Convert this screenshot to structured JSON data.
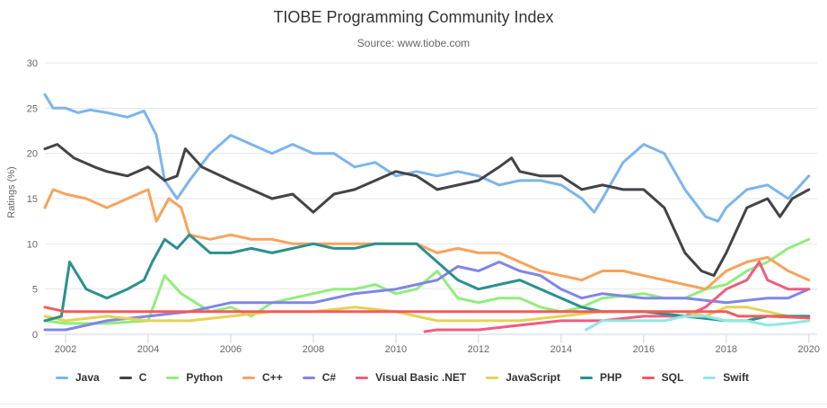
{
  "chart_data": {
    "type": "line",
    "title": "TIOBE Programming Community Index",
    "subtitle": "Source: www.tiobe.com",
    "ylabel": "Ratings (%)",
    "xlabel": "",
    "xlim": [
      2001.5,
      2020.2
    ],
    "ylim": [
      0,
      30
    ],
    "y_ticks": [
      0,
      5,
      10,
      15,
      20,
      25,
      30
    ],
    "y_tick_labels": [
      "0",
      "5",
      "10",
      "15",
      "20",
      "25",
      "30"
    ],
    "x_ticks": [
      2002,
      2004,
      2006,
      2008,
      2010,
      2012,
      2014,
      2016,
      2018,
      2020
    ],
    "x_tick_labels": [
      "2002",
      "2004",
      "2006",
      "2008",
      "2010",
      "2012",
      "2014",
      "2016",
      "2018",
      "2020"
    ],
    "grid": true,
    "legend_position": "bottom",
    "series": [
      {
        "name": "Java",
        "color": "#7cb5ec",
        "points": [
          [
            2001.5,
            26.5
          ],
          [
            2001.7,
            25
          ],
          [
            2002,
            25
          ],
          [
            2002.3,
            24.5
          ],
          [
            2002.6,
            24.8
          ],
          [
            2003,
            24.5
          ],
          [
            2003.5,
            24
          ],
          [
            2003.9,
            24.7
          ],
          [
            2004.2,
            22
          ],
          [
            2004.4,
            17
          ],
          [
            2004.7,
            15
          ],
          [
            2005,
            17
          ],
          [
            2005.5,
            20
          ],
          [
            2006,
            22
          ],
          [
            2006.5,
            21
          ],
          [
            2007,
            20
          ],
          [
            2007.5,
            21
          ],
          [
            2008,
            20
          ],
          [
            2008.5,
            20
          ],
          [
            2009,
            18.5
          ],
          [
            2009.5,
            19
          ],
          [
            2010,
            17.5
          ],
          [
            2010.5,
            18
          ],
          [
            2011,
            17.5
          ],
          [
            2011.5,
            18
          ],
          [
            2012,
            17.5
          ],
          [
            2012.5,
            16.5
          ],
          [
            2013,
            17
          ],
          [
            2013.5,
            17
          ],
          [
            2014,
            16.5
          ],
          [
            2014.5,
            15
          ],
          [
            2014.8,
            13.5
          ],
          [
            2015,
            15
          ],
          [
            2015.5,
            19
          ],
          [
            2016,
            21
          ],
          [
            2016.5,
            20
          ],
          [
            2017,
            16
          ],
          [
            2017.5,
            13
          ],
          [
            2017.8,
            12.5
          ],
          [
            2018,
            14
          ],
          [
            2018.5,
            16
          ],
          [
            2019,
            16.5
          ],
          [
            2019.5,
            15
          ],
          [
            2020,
            17.5
          ]
        ]
      },
      {
        "name": "C",
        "color": "#434348",
        "points": [
          [
            2001.5,
            20.5
          ],
          [
            2001.8,
            21
          ],
          [
            2002.2,
            19.5
          ],
          [
            2002.7,
            18.5
          ],
          [
            2003,
            18
          ],
          [
            2003.5,
            17.5
          ],
          [
            2004,
            18.5
          ],
          [
            2004.4,
            17
          ],
          [
            2004.7,
            17.5
          ],
          [
            2004.9,
            20.5
          ],
          [
            2005.3,
            18.5
          ],
          [
            2006,
            17
          ],
          [
            2006.5,
            16
          ],
          [
            2007,
            15
          ],
          [
            2007.5,
            15.5
          ],
          [
            2008,
            13.5
          ],
          [
            2008.5,
            15.5
          ],
          [
            2009,
            16
          ],
          [
            2009.5,
            17
          ],
          [
            2010,
            18
          ],
          [
            2010.5,
            17.5
          ],
          [
            2011,
            16
          ],
          [
            2011.5,
            16.5
          ],
          [
            2012,
            17
          ],
          [
            2012.5,
            18.5
          ],
          [
            2012.8,
            19.5
          ],
          [
            2013,
            18
          ],
          [
            2013.5,
            17.5
          ],
          [
            2014,
            17.5
          ],
          [
            2014.5,
            16
          ],
          [
            2015,
            16.5
          ],
          [
            2015.5,
            16
          ],
          [
            2016,
            16
          ],
          [
            2016.5,
            14
          ],
          [
            2017,
            9
          ],
          [
            2017.4,
            7
          ],
          [
            2017.7,
            6.5
          ],
          [
            2018,
            9
          ],
          [
            2018.5,
            14
          ],
          [
            2019,
            15
          ],
          [
            2019.3,
            13
          ],
          [
            2019.6,
            15
          ],
          [
            2020,
            16
          ]
        ]
      },
      {
        "name": "Python",
        "color": "#90ed7d",
        "points": [
          [
            2001.5,
            1.5
          ],
          [
            2002,
            1.2
          ],
          [
            2003,
            1.2
          ],
          [
            2004,
            1.5
          ],
          [
            2004.4,
            6.5
          ],
          [
            2004.8,
            4.5
          ],
          [
            2005.5,
            2.5
          ],
          [
            2006,
            3
          ],
          [
            2006.5,
            2
          ],
          [
            2007,
            3.5
          ],
          [
            2008,
            4.5
          ],
          [
            2008.5,
            5
          ],
          [
            2009,
            5
          ],
          [
            2009.5,
            5.5
          ],
          [
            2010,
            4.5
          ],
          [
            2010.5,
            5
          ],
          [
            2011,
            7
          ],
          [
            2011.5,
            4
          ],
          [
            2012,
            3.5
          ],
          [
            2012.5,
            4
          ],
          [
            2013,
            4
          ],
          [
            2013.5,
            3
          ],
          [
            2014,
            2.5
          ],
          [
            2014.5,
            3
          ],
          [
            2015,
            4
          ],
          [
            2016,
            4.5
          ],
          [
            2016.5,
            4
          ],
          [
            2017,
            4
          ],
          [
            2017.5,
            5
          ],
          [
            2018,
            5.5
          ],
          [
            2018.5,
            7
          ],
          [
            2019,
            8
          ],
          [
            2019.5,
            9.5
          ],
          [
            2020,
            10.5
          ]
        ]
      },
      {
        "name": "C++",
        "color": "#f7a35c",
        "points": [
          [
            2001.5,
            14
          ],
          [
            2001.7,
            16
          ],
          [
            2002,
            15.5
          ],
          [
            2002.5,
            15
          ],
          [
            2003,
            14
          ],
          [
            2003.5,
            15
          ],
          [
            2004,
            16
          ],
          [
            2004.2,
            12.5
          ],
          [
            2004.5,
            15
          ],
          [
            2004.8,
            14
          ],
          [
            2005,
            11
          ],
          [
            2005.5,
            10.5
          ],
          [
            2006,
            11
          ],
          [
            2006.5,
            10.5
          ],
          [
            2007,
            10.5
          ],
          [
            2007.5,
            10
          ],
          [
            2008,
            10
          ],
          [
            2008.5,
            10
          ],
          [
            2009,
            10
          ],
          [
            2009.5,
            10
          ],
          [
            2010,
            10
          ],
          [
            2010.5,
            10
          ],
          [
            2011,
            9
          ],
          [
            2011.5,
            9.5
          ],
          [
            2012,
            9
          ],
          [
            2012.5,
            9
          ],
          [
            2013,
            8
          ],
          [
            2013.5,
            7
          ],
          [
            2014,
            6.5
          ],
          [
            2014.5,
            6
          ],
          [
            2015,
            7
          ],
          [
            2015.5,
            7
          ],
          [
            2016,
            6.5
          ],
          [
            2016.5,
            6
          ],
          [
            2017,
            5.5
          ],
          [
            2017.5,
            5
          ],
          [
            2018,
            7
          ],
          [
            2018.5,
            8
          ],
          [
            2019,
            8.5
          ],
          [
            2019.5,
            7
          ],
          [
            2020,
            6
          ]
        ]
      },
      {
        "name": "C#",
        "color": "#8085e9",
        "points": [
          [
            2001.5,
            0.5
          ],
          [
            2002,
            0.5
          ],
          [
            2003,
            1.5
          ],
          [
            2004,
            2
          ],
          [
            2005,
            2.5
          ],
          [
            2006,
            3.5
          ],
          [
            2007,
            3.5
          ],
          [
            2008,
            3.5
          ],
          [
            2009,
            4.5
          ],
          [
            2010,
            5
          ],
          [
            2011,
            6
          ],
          [
            2011.5,
            7.5
          ],
          [
            2012,
            7
          ],
          [
            2012.5,
            8
          ],
          [
            2013,
            7
          ],
          [
            2013.5,
            6.5
          ],
          [
            2014,
            5
          ],
          [
            2014.5,
            4
          ],
          [
            2015,
            4.5
          ],
          [
            2016,
            4
          ],
          [
            2017,
            4
          ],
          [
            2018,
            3.5
          ],
          [
            2019,
            4
          ],
          [
            2019.5,
            4
          ],
          [
            2020,
            5
          ]
        ]
      },
      {
        "name": "Visual Basic .NET",
        "color": "#f15c80",
        "points": [
          [
            2010.7,
            0.3
          ],
          [
            2011,
            0.5
          ],
          [
            2012,
            0.5
          ],
          [
            2013,
            1
          ],
          [
            2014,
            1.5
          ],
          [
            2015,
            1.5
          ],
          [
            2016,
            2
          ],
          [
            2017,
            2
          ],
          [
            2017.5,
            3
          ],
          [
            2018,
            5
          ],
          [
            2018.5,
            6
          ],
          [
            2018.8,
            8
          ],
          [
            2019,
            6
          ],
          [
            2019.5,
            5
          ],
          [
            2020,
            5
          ]
        ]
      },
      {
        "name": "JavaScript",
        "color": "#e4d354",
        "points": [
          [
            2001.5,
            2
          ],
          [
            2002,
            1.5
          ],
          [
            2003,
            2
          ],
          [
            2004,
            1.5
          ],
          [
            2005,
            1.5
          ],
          [
            2006,
            2
          ],
          [
            2007,
            2.5
          ],
          [
            2008,
            2.5
          ],
          [
            2009,
            3
          ],
          [
            2010,
            2.5
          ],
          [
            2011,
            1.5
          ],
          [
            2012,
            1.5
          ],
          [
            2013,
            1.5
          ],
          [
            2014,
            2
          ],
          [
            2015,
            2.5
          ],
          [
            2016,
            2.5
          ],
          [
            2017,
            2.5
          ],
          [
            2017.5,
            2
          ],
          [
            2018,
            3
          ],
          [
            2018.5,
            3
          ],
          [
            2019,
            2.5
          ],
          [
            2019.5,
            2
          ],
          [
            2020,
            2
          ]
        ]
      },
      {
        "name": "PHP",
        "color": "#2b908f",
        "points": [
          [
            2001.5,
            1.5
          ],
          [
            2001.9,
            2
          ],
          [
            2002.1,
            8
          ],
          [
            2002.5,
            5
          ],
          [
            2003,
            4
          ],
          [
            2003.5,
            5
          ],
          [
            2003.9,
            6
          ],
          [
            2004.1,
            8
          ],
          [
            2004.4,
            10.5
          ],
          [
            2004.7,
            9.5
          ],
          [
            2005,
            11
          ],
          [
            2005.5,
            9
          ],
          [
            2006,
            9
          ],
          [
            2006.5,
            9.5
          ],
          [
            2007,
            9
          ],
          [
            2007.5,
            9.5
          ],
          [
            2008,
            10
          ],
          [
            2008.5,
            9.5
          ],
          [
            2009,
            9.5
          ],
          [
            2009.5,
            10
          ],
          [
            2010,
            10
          ],
          [
            2010.5,
            10
          ],
          [
            2011,
            8
          ],
          [
            2011.5,
            6
          ],
          [
            2012,
            5
          ],
          [
            2012.5,
            5.5
          ],
          [
            2013,
            6
          ],
          [
            2013.5,
            5
          ],
          [
            2014,
            4
          ],
          [
            2014.5,
            3
          ],
          [
            2015,
            2.5
          ],
          [
            2016,
            2.5
          ],
          [
            2017,
            2
          ],
          [
            2018,
            1.5
          ],
          [
            2018.5,
            1.5
          ],
          [
            2019,
            2
          ],
          [
            2020,
            2
          ]
        ]
      },
      {
        "name": "SQL",
        "color": "#f45b5b",
        "points": [
          [
            2001.5,
            3
          ],
          [
            2002,
            2.5
          ],
          [
            2003,
            2.5
          ],
          [
            2004,
            2.5
          ],
          [
            2005,
            2.5
          ],
          [
            2006,
            2.5
          ],
          [
            2007,
            2.5
          ],
          [
            2008,
            2.5
          ],
          [
            2009,
            2.5
          ],
          [
            2010,
            2.5
          ],
          [
            2011,
            2.5
          ],
          [
            2012,
            2.5
          ],
          [
            2013,
            2.5
          ],
          [
            2014,
            2.5
          ],
          [
            2015,
            2.5
          ],
          [
            2016,
            2.5
          ],
          [
            2017,
            2.5
          ],
          [
            2018,
            2.5
          ],
          [
            2018.3,
            2
          ],
          [
            2019,
            2
          ],
          [
            2020,
            1.8
          ]
        ]
      },
      {
        "name": "Swift",
        "color": "#91e8e1",
        "points": [
          [
            2014.6,
            0.5
          ],
          [
            2015,
            1.5
          ],
          [
            2016,
            1.5
          ],
          [
            2016.5,
            1.5
          ],
          [
            2017,
            2
          ],
          [
            2017.5,
            2
          ],
          [
            2018,
            1.5
          ],
          [
            2018.5,
            1.5
          ],
          [
            2019,
            1
          ],
          [
            2019.5,
            1.2
          ],
          [
            2020,
            1.5
          ]
        ]
      }
    ]
  }
}
